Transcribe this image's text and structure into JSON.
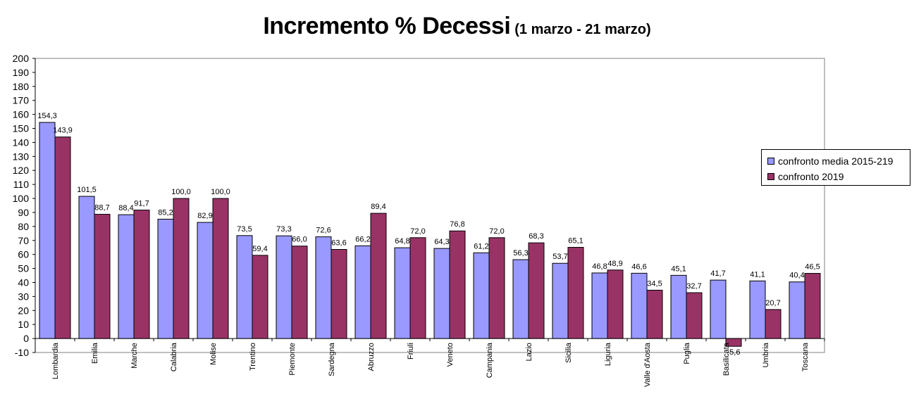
{
  "title": "Incremento % Decessi",
  "subtitle": "(1 marzo - 21 marzo)",
  "colors": {
    "series1": "#9999ff",
    "series2": "#993366",
    "axis": "#000000",
    "plot_bg": "#ffffff"
  },
  "chart_data": {
    "type": "bar",
    "title": "Incremento % Decessi",
    "subtitle": "(1 marzo - 21 marzo)",
    "xlabel": "",
    "ylabel": "",
    "ylim": [
      -10,
      200
    ],
    "yticks": [
      -10,
      0,
      10,
      20,
      30,
      40,
      50,
      60,
      70,
      80,
      90,
      100,
      110,
      120,
      130,
      140,
      150,
      160,
      170,
      180,
      190,
      200
    ],
    "grid": false,
    "legend_position": "right",
    "categories": [
      "Lombardia",
      "Emilia",
      "Marche",
      "Calabria",
      "Molise",
      "Trentino",
      "Piemonte",
      "Sardegna",
      "Abruzzo",
      "Friuli",
      "Veneto",
      "Campania",
      "Lazio",
      "Sicilia",
      "Liguria",
      "Valle d'Aosta",
      "Puglia",
      "Basilicata",
      "Umbria",
      "Toscana"
    ],
    "series": [
      {
        "name": "confronto media 2015-219",
        "values": [
          154.3,
          101.5,
          88.4,
          85.2,
          82.9,
          73.5,
          73.3,
          72.6,
          66.2,
          64.8,
          64.3,
          61.2,
          56.3,
          53.7,
          46.8,
          46.6,
          45.1,
          41.7,
          41.1,
          40.4
        ],
        "labels": [
          "154,3",
          "101,5",
          "88,4",
          "85,2",
          "82,9",
          "73,5",
          "73,3",
          "72,6",
          "66,2",
          "64,8",
          "64,3",
          "61,2",
          "56,3",
          "53,7",
          "46,8",
          "46,6",
          "45,1",
          "41,7",
          "41,1",
          "40,4"
        ]
      },
      {
        "name": "confronto 2019",
        "values": [
          143.9,
          88.7,
          91.7,
          100.0,
          100.0,
          59.4,
          66.0,
          63.6,
          89.4,
          72.0,
          76.8,
          72.0,
          68.3,
          65.1,
          48.9,
          34.5,
          32.7,
          -5.6,
          20.7,
          46.5
        ],
        "labels": [
          "143,9",
          "88,7",
          "91,7",
          "100,0",
          "100,0",
          "59,4",
          "66,0",
          "63,6",
          "89,4",
          "72,0",
          "76,8",
          "72,0",
          "68,3",
          "65,1",
          "48,9",
          "34,5",
          "32,7",
          "-5,6",
          "20,7",
          "46,5"
        ]
      }
    ]
  }
}
